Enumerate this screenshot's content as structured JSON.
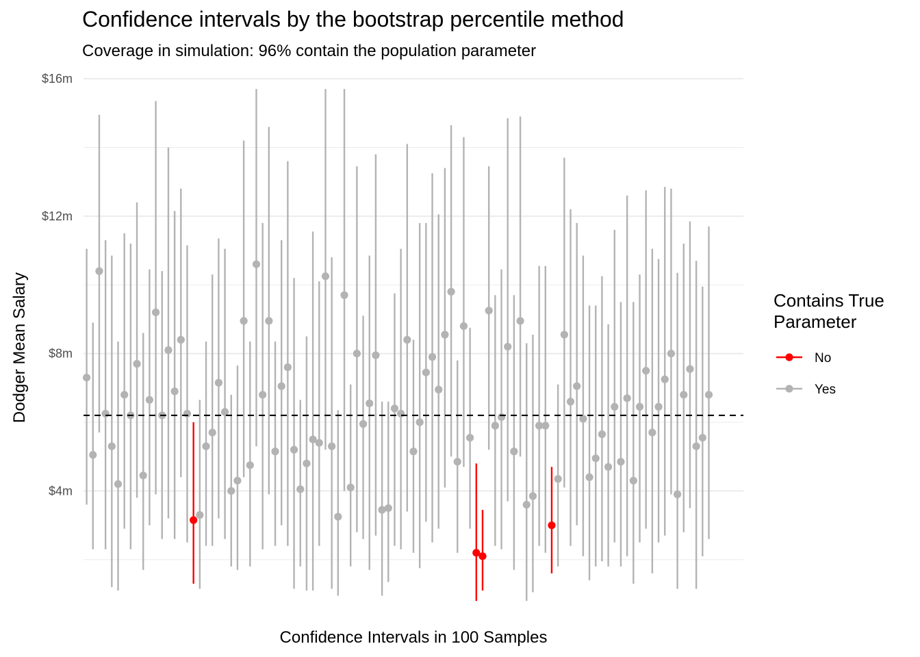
{
  "chart_data": {
    "type": "errorbar",
    "title": "Confidence intervals by the bootstrap percentile method",
    "subtitle": "Coverage in simulation: 96% contain the population parameter",
    "xlabel": "Confidence Intervals in 100 Samples",
    "ylabel": "Dodger Mean Salary",
    "y_unit": "millions of dollars",
    "ylim": [
      0.6,
      16.3
    ],
    "y_ticks": [
      4,
      8,
      12,
      16
    ],
    "y_tick_labels": [
      "$4m",
      "$8m",
      "$12m",
      "$16m"
    ],
    "grid": true,
    "reference_line": {
      "y": 6.2,
      "style": "dashed"
    },
    "legend": {
      "title": "Contains True Parameter",
      "title_lines": [
        "Contains True",
        "Parameter"
      ],
      "placement": "right",
      "entries": [
        {
          "label": "No",
          "color": "#ff0000"
        },
        {
          "label": "Yes",
          "color": "#b3b3b3"
        }
      ]
    },
    "colors": {
      "No": "#ff0000",
      "Yes": "#b3b3b3",
      "grid": "#ebebeb",
      "reference": "#000000"
    },
    "x": [
      1,
      2,
      3,
      4,
      5,
      6,
      7,
      8,
      9,
      10,
      11,
      12,
      13,
      14,
      15,
      16,
      17,
      18,
      19,
      20,
      21,
      22,
      23,
      24,
      25,
      26,
      27,
      28,
      29,
      30,
      31,
      32,
      33,
      34,
      35,
      36,
      37,
      38,
      39,
      40,
      41,
      42,
      43,
      44,
      45,
      46,
      47,
      48,
      49,
      50,
      51,
      52,
      53,
      54,
      55,
      56,
      57,
      58,
      59,
      60,
      61,
      62,
      63,
      64,
      65,
      66,
      67,
      68,
      69,
      70,
      71,
      72,
      73,
      74,
      75,
      76,
      77,
      78,
      79,
      80,
      81,
      82,
      83,
      84,
      85,
      86,
      87,
      88,
      89,
      90,
      91,
      92,
      93,
      94,
      95,
      96,
      97,
      98,
      99,
      100
    ],
    "estimate": [
      7.3,
      5.05,
      10.4,
      6.25,
      5.3,
      4.2,
      6.8,
      6.2,
      7.7,
      4.45,
      6.65,
      9.2,
      6.2,
      8.1,
      6.9,
      8.4,
      6.25,
      3.15,
      3.3,
      5.3,
      5.7,
      7.15,
      6.3,
      4.0,
      4.3,
      8.95,
      4.75,
      10.6,
      6.8,
      8.95,
      5.15,
      7.05,
      7.6,
      5.2,
      4.05,
      4.8,
      5.5,
      5.4,
      10.25,
      5.3,
      3.25,
      9.7,
      4.1,
      8.0,
      5.95,
      6.55,
      7.95,
      3.45,
      3.5,
      6.4,
      6.25,
      8.4,
      5.15,
      6.0,
      7.45,
      7.9,
      6.95,
      8.55,
      9.8,
      4.85,
      8.8,
      5.55,
      2.2,
      2.1,
      9.25,
      5.9,
      6.15,
      8.2,
      5.15,
      8.95,
      3.6,
      3.85,
      5.9,
      5.9,
      3.0,
      4.35,
      8.55,
      6.6,
      7.05,
      6.1,
      4.4,
      4.95,
      5.65,
      4.7,
      6.45,
      4.85,
      6.7,
      4.3,
      6.45,
      7.5,
      5.7,
      6.45,
      7.25,
      8.0,
      3.9,
      6.8,
      7.55,
      5.3,
      5.55,
      6.8
    ],
    "lower": [
      3.6,
      2.3,
      5.7,
      2.3,
      1.2,
      1.1,
      2.9,
      2.3,
      3.8,
      1.7,
      3.0,
      3.9,
      2.6,
      3.2,
      2.6,
      4.4,
      2.5,
      1.3,
      1.15,
      2.4,
      2.4,
      3.2,
      2.6,
      1.8,
      1.7,
      4.4,
      1.8,
      5.3,
      2.3,
      3.9,
      2.4,
      3.0,
      2.4,
      1.15,
      1.8,
      1.1,
      1.1,
      2.4,
      5.2,
      1.15,
      0.95,
      4.0,
      1.8,
      2.8,
      2.6,
      1.7,
      2.7,
      0.95,
      1.35,
      2.4,
      2.3,
      3.4,
      2.2,
      1.75,
      3.1,
      2.5,
      2.9,
      4.1,
      5.0,
      2.2,
      4.7,
      2.9,
      0.8,
      1.1,
      5.2,
      2.4,
      2.3,
      3.7,
      1.7,
      5.0,
      0.8,
      1.05,
      2.4,
      2.2,
      1.6,
      1.8,
      4.1,
      2.4,
      3.0,
      2.1,
      1.4,
      1.8,
      1.95,
      1.8,
      2.5,
      1.8,
      2.1,
      1.3,
      2.5,
      2.9,
      1.6,
      2.5,
      2.7,
      3.9,
      1.15,
      2.8,
      3.5,
      1.15,
      2.1,
      2.6
    ],
    "upper": [
      11.05,
      8.9,
      14.95,
      11.3,
      10.85,
      8.35,
      11.5,
      11.2,
      12.4,
      8.6,
      10.45,
      15.35,
      10.4,
      14.0,
      12.15,
      12.8,
      11.15,
      6.0,
      6.65,
      8.35,
      10.3,
      11.35,
      11.05,
      6.8,
      7.65,
      14.2,
      8.35,
      15.7,
      11.8,
      14.6,
      8.35,
      11.3,
      13.6,
      10.2,
      6.65,
      8.5,
      11.55,
      10.1,
      15.7,
      10.8,
      6.35,
      15.7,
      7.1,
      13.45,
      9.1,
      10.85,
      13.8,
      6.6,
      6.6,
      9.75,
      11.05,
      14.1,
      8.4,
      11.8,
      11.8,
      13.25,
      12.05,
      13.4,
      14.65,
      7.8,
      14.3,
      8.75,
      4.8,
      3.45,
      13.45,
      9.7,
      10.45,
      14.85,
      9.7,
      14.9,
      8.3,
      8.55,
      10.55,
      10.55,
      4.7,
      7.1,
      13.7,
      12.2,
      11.8,
      10.85,
      9.4,
      9.4,
      10.25,
      8.85,
      11.6,
      9.5,
      12.6,
      9.5,
      10.3,
      12.75,
      11.05,
      10.75,
      12.85,
      12.8,
      10.35,
      11.2,
      11.85,
      10.7,
      9.95,
      11.7
    ],
    "contains": [
      "Yes",
      "Yes",
      "Yes",
      "Yes",
      "Yes",
      "Yes",
      "Yes",
      "Yes",
      "Yes",
      "Yes",
      "Yes",
      "Yes",
      "Yes",
      "Yes",
      "Yes",
      "Yes",
      "Yes",
      "No",
      "Yes",
      "Yes",
      "Yes",
      "Yes",
      "Yes",
      "Yes",
      "Yes",
      "Yes",
      "Yes",
      "Yes",
      "Yes",
      "Yes",
      "Yes",
      "Yes",
      "Yes",
      "Yes",
      "Yes",
      "Yes",
      "Yes",
      "Yes",
      "Yes",
      "Yes",
      "Yes",
      "Yes",
      "Yes",
      "Yes",
      "Yes",
      "Yes",
      "Yes",
      "Yes",
      "Yes",
      "Yes",
      "Yes",
      "Yes",
      "Yes",
      "Yes",
      "Yes",
      "Yes",
      "Yes",
      "Yes",
      "Yes",
      "Yes",
      "Yes",
      "Yes",
      "No",
      "No",
      "Yes",
      "Yes",
      "Yes",
      "Yes",
      "Yes",
      "Yes",
      "Yes",
      "Yes",
      "Yes",
      "Yes",
      "No",
      "Yes",
      "Yes",
      "Yes",
      "Yes",
      "Yes",
      "Yes",
      "Yes",
      "Yes",
      "Yes",
      "Yes",
      "Yes",
      "Yes",
      "Yes",
      "Yes",
      "Yes",
      "Yes",
      "Yes",
      "Yes",
      "Yes",
      "Yes",
      "Yes",
      "Yes",
      "Yes",
      "Yes",
      "Yes"
    ]
  }
}
